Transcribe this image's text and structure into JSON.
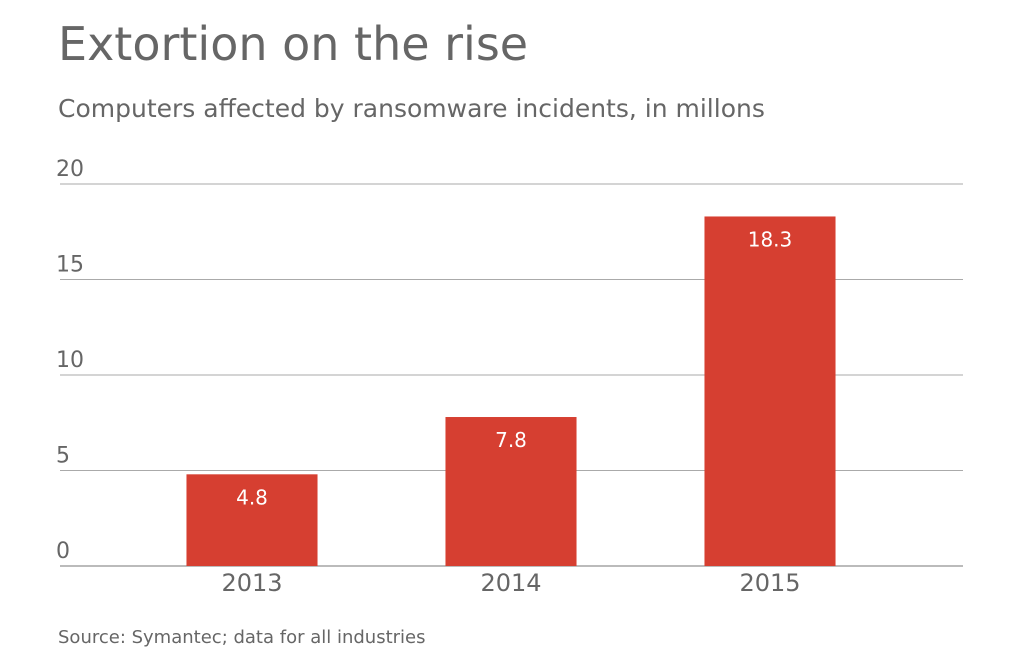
{
  "chart_data": {
    "type": "bar",
    "title": "Extortion on the rise",
    "subtitle": "Computers affected by ransomware incidents, in millons",
    "categories": [
      "2013",
      "2014",
      "2015"
    ],
    "values": [
      4.8,
      7.8,
      18.3
    ],
    "color": "#d63f31",
    "ylim": [
      0,
      20
    ],
    "yticks": [
      0,
      5,
      10,
      15,
      20
    ],
    "grid": true,
    "source": "Source: Symantec; data for all industries"
  }
}
